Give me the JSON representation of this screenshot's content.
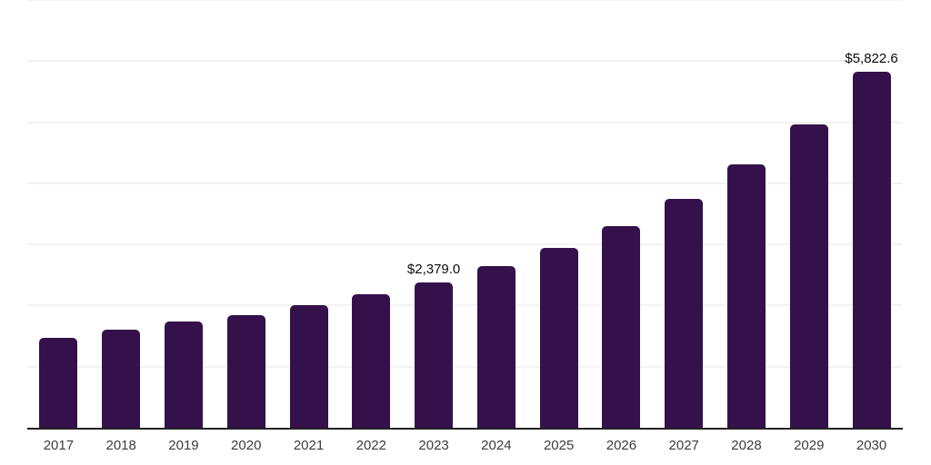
{
  "chart": {
    "background_color": "#ffffff",
    "bar_color": "#35114B",
    "gridline_color": "#f2f2f2",
    "axis_line_color": "#212121",
    "tick_label_color": "#3c3c3c",
    "value_label_color": "#0c0c0c"
  },
  "chart_data": {
    "type": "bar",
    "title": "",
    "xlabel": "",
    "ylabel": "",
    "categories": [
      "2017",
      "2018",
      "2019",
      "2020",
      "2021",
      "2022",
      "2023",
      "2024",
      "2025",
      "2026",
      "2027",
      "2028",
      "2029",
      "2030"
    ],
    "values": [
      1475,
      1600,
      1735,
      1850,
      2000,
      2180,
      2379.0,
      2640,
      2950,
      3300,
      3750,
      4310,
      4960,
      5822.6
    ],
    "data_labels": [
      "",
      "",
      "",
      "",
      "",
      "",
      "$2,379.0",
      "",
      "",
      "",
      "",
      "",
      "",
      "$5,822.6"
    ],
    "ylim": [
      0,
      7000
    ],
    "gridline_step": 1000,
    "grid": "horizontal",
    "legend_position": "none",
    "y_axis_tick_labels_visible": false,
    "currency_unit": "$"
  }
}
